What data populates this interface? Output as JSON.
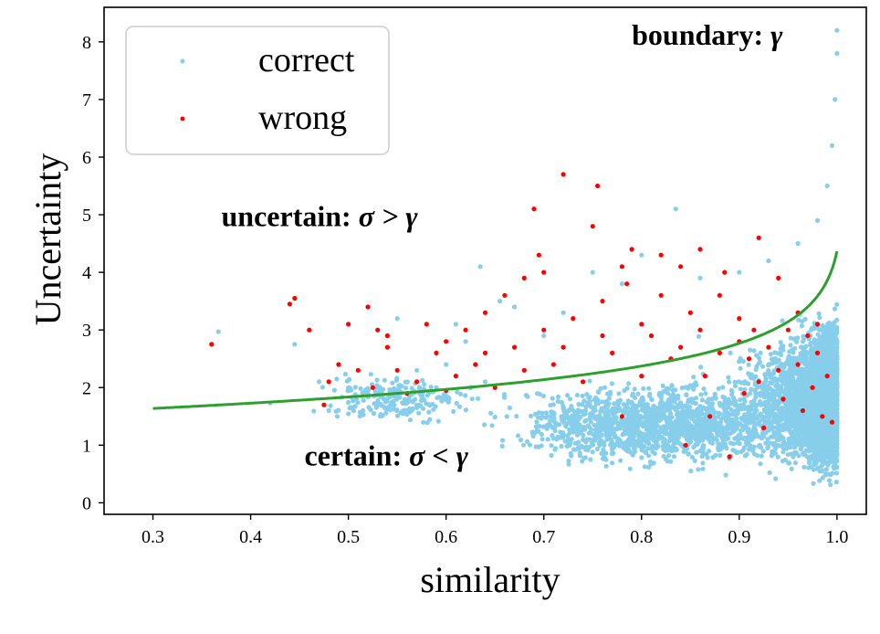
{
  "chart_data": {
    "type": "scatter",
    "xlabel": "similarity",
    "ylabel": "Uncertainty",
    "xlim": [
      0.25,
      1.03
    ],
    "ylim": [
      -0.2,
      8.6
    ],
    "xticks": [
      "0.3",
      "0.4",
      "0.5",
      "0.6",
      "0.7",
      "0.8",
      "0.9",
      "1.0"
    ],
    "yticks": [
      "0",
      "1",
      "2",
      "3",
      "4",
      "5",
      "6",
      "7",
      "8"
    ],
    "grid": false,
    "legend_position": "top-left",
    "series": [
      {
        "name": "correct",
        "color": "#87ceeb",
        "points": [
          [
            0.367,
            2.97
          ],
          [
            0.42,
            1.73
          ],
          [
            0.445,
            2.75
          ],
          [
            0.46,
            3.0
          ],
          [
            0.47,
            2.1
          ],
          [
            0.48,
            1.6
          ],
          [
            0.5,
            2.0
          ],
          [
            0.52,
            1.9
          ],
          [
            0.55,
            3.2
          ],
          [
            0.57,
            2.3
          ],
          [
            0.59,
            2.0
          ],
          [
            0.6,
            2.4
          ],
          [
            0.61,
            3.1
          ],
          [
            0.62,
            2.8
          ],
          [
            0.635,
            4.1
          ],
          [
            0.64,
            2.1
          ],
          [
            0.655,
            3.5
          ],
          [
            0.67,
            3.4
          ],
          [
            0.7,
            2.9
          ],
          [
            0.72,
            3.3
          ],
          [
            0.75,
            4.0
          ],
          [
            0.78,
            3.8
          ],
          [
            0.8,
            4.3
          ],
          [
            0.835,
            5.1
          ],
          [
            0.86,
            3.9
          ],
          [
            0.9,
            4.0
          ],
          [
            0.93,
            4.2
          ],
          [
            0.96,
            4.5
          ],
          [
            0.98,
            4.9
          ],
          [
            0.99,
            5.5
          ],
          [
            0.995,
            6.2
          ],
          [
            0.998,
            7.0
          ],
          [
            1.0,
            7.8
          ],
          [
            1.0,
            8.2
          ]
        ],
        "clouds": [
          {
            "x_range": [
              0.63,
              1.0
            ],
            "y_range": [
              0.5,
              2.2
            ],
            "count": 1500
          },
          {
            "x_range": [
              0.8,
              1.0
            ],
            "y_range": [
              0.3,
              3.2
            ],
            "count": 2200
          },
          {
            "x_range": [
              0.9,
              1.0
            ],
            "y_range": [
              0.2,
              3.5
            ],
            "count": 1800
          },
          {
            "x_range": [
              0.45,
              0.65
            ],
            "y_range": [
              1.3,
              2.3
            ],
            "count": 220
          }
        ]
      },
      {
        "name": "wrong",
        "color": "#ff0000",
        "points": [
          [
            0.36,
            2.75
          ],
          [
            0.44,
            3.45
          ],
          [
            0.445,
            3.55
          ],
          [
            0.46,
            3.0
          ],
          [
            0.475,
            1.7
          ],
          [
            0.48,
            2.1
          ],
          [
            0.49,
            2.4
          ],
          [
            0.5,
            3.1
          ],
          [
            0.51,
            2.3
          ],
          [
            0.52,
            3.4
          ],
          [
            0.525,
            2.0
          ],
          [
            0.53,
            3.0
          ],
          [
            0.54,
            2.7
          ],
          [
            0.55,
            2.3
          ],
          [
            0.56,
            1.9
          ],
          [
            0.57,
            2.1
          ],
          [
            0.58,
            3.1
          ],
          [
            0.59,
            2.6
          ],
          [
            0.6,
            2.8
          ],
          [
            0.61,
            2.2
          ],
          [
            0.62,
            3.0
          ],
          [
            0.63,
            2.4
          ],
          [
            0.64,
            3.3
          ],
          [
            0.65,
            2.0
          ],
          [
            0.66,
            3.6
          ],
          [
            0.67,
            2.7
          ],
          [
            0.68,
            3.9
          ],
          [
            0.69,
            5.1
          ],
          [
            0.695,
            4.3
          ],
          [
            0.7,
            3.0
          ],
          [
            0.71,
            2.4
          ],
          [
            0.72,
            5.7
          ],
          [
            0.73,
            3.2
          ],
          [
            0.74,
            2.1
          ],
          [
            0.75,
            4.8
          ],
          [
            0.755,
            5.5
          ],
          [
            0.76,
            3.5
          ],
          [
            0.77,
            2.6
          ],
          [
            0.78,
            1.5
          ],
          [
            0.785,
            3.8
          ],
          [
            0.79,
            4.4
          ],
          [
            0.8,
            3.1
          ],
          [
            0.81,
            2.9
          ],
          [
            0.82,
            3.6
          ],
          [
            0.83,
            2.5
          ],
          [
            0.84,
            4.1
          ],
          [
            0.845,
            1.0
          ],
          [
            0.85,
            3.3
          ],
          [
            0.86,
            4.4
          ],
          [
            0.865,
            2.2
          ],
          [
            0.87,
            1.5
          ],
          [
            0.88,
            3.6
          ],
          [
            0.885,
            4.0
          ],
          [
            0.89,
            0.8
          ],
          [
            0.9,
            3.2
          ],
          [
            0.905,
            1.9
          ],
          [
            0.91,
            2.5
          ],
          [
            0.915,
            3.0
          ],
          [
            0.92,
            4.6
          ],
          [
            0.925,
            1.3
          ],
          [
            0.93,
            2.7
          ],
          [
            0.94,
            3.9
          ],
          [
            0.945,
            1.8
          ],
          [
            0.95,
            3.0
          ],
          [
            0.96,
            2.4
          ],
          [
            0.965,
            1.6
          ],
          [
            0.97,
            2.9
          ],
          [
            0.975,
            2.0
          ],
          [
            0.98,
            3.1
          ],
          [
            0.985,
            1.5
          ],
          [
            0.99,
            2.2
          ],
          [
            0.995,
            1.4
          ],
          [
            0.6,
            1.95
          ],
          [
            0.64,
            2.6
          ],
          [
            0.68,
            2.3
          ],
          [
            0.72,
            2.7
          ],
          [
            0.76,
            2.9
          ],
          [
            0.8,
            2.2
          ],
          [
            0.84,
            2.7
          ],
          [
            0.88,
            2.6
          ],
          [
            0.92,
            2.1
          ],
          [
            0.96,
            3.3
          ],
          [
            0.54,
            2.9
          ],
          [
            0.7,
            4.0
          ],
          [
            0.78,
            4.1
          ],
          [
            0.82,
            4.3
          ],
          [
            0.86,
            3.0
          ],
          [
            0.9,
            2.8
          ],
          [
            0.94,
            2.3
          ],
          [
            0.98,
            2.6
          ]
        ]
      },
      {
        "name": "boundary",
        "type": "line",
        "color": "#2ca02c",
        "formula": "y = 1.43 - 0.6 * ln(1.0075 - x)",
        "x_range": [
          0.3,
          1.0
        ]
      }
    ],
    "annotations": [
      {
        "label": "boundary:",
        "symbol": "γ",
        "x": 0.79,
        "y": 7.95,
        "anchor": "start"
      },
      {
        "label": "uncertain:",
        "symbol": "σ > γ",
        "x": 0.37,
        "y": 4.8,
        "anchor": "start"
      },
      {
        "label": "certain:",
        "symbol": "σ < γ",
        "x": 0.455,
        "y": 0.65,
        "anchor": "start"
      }
    ]
  }
}
